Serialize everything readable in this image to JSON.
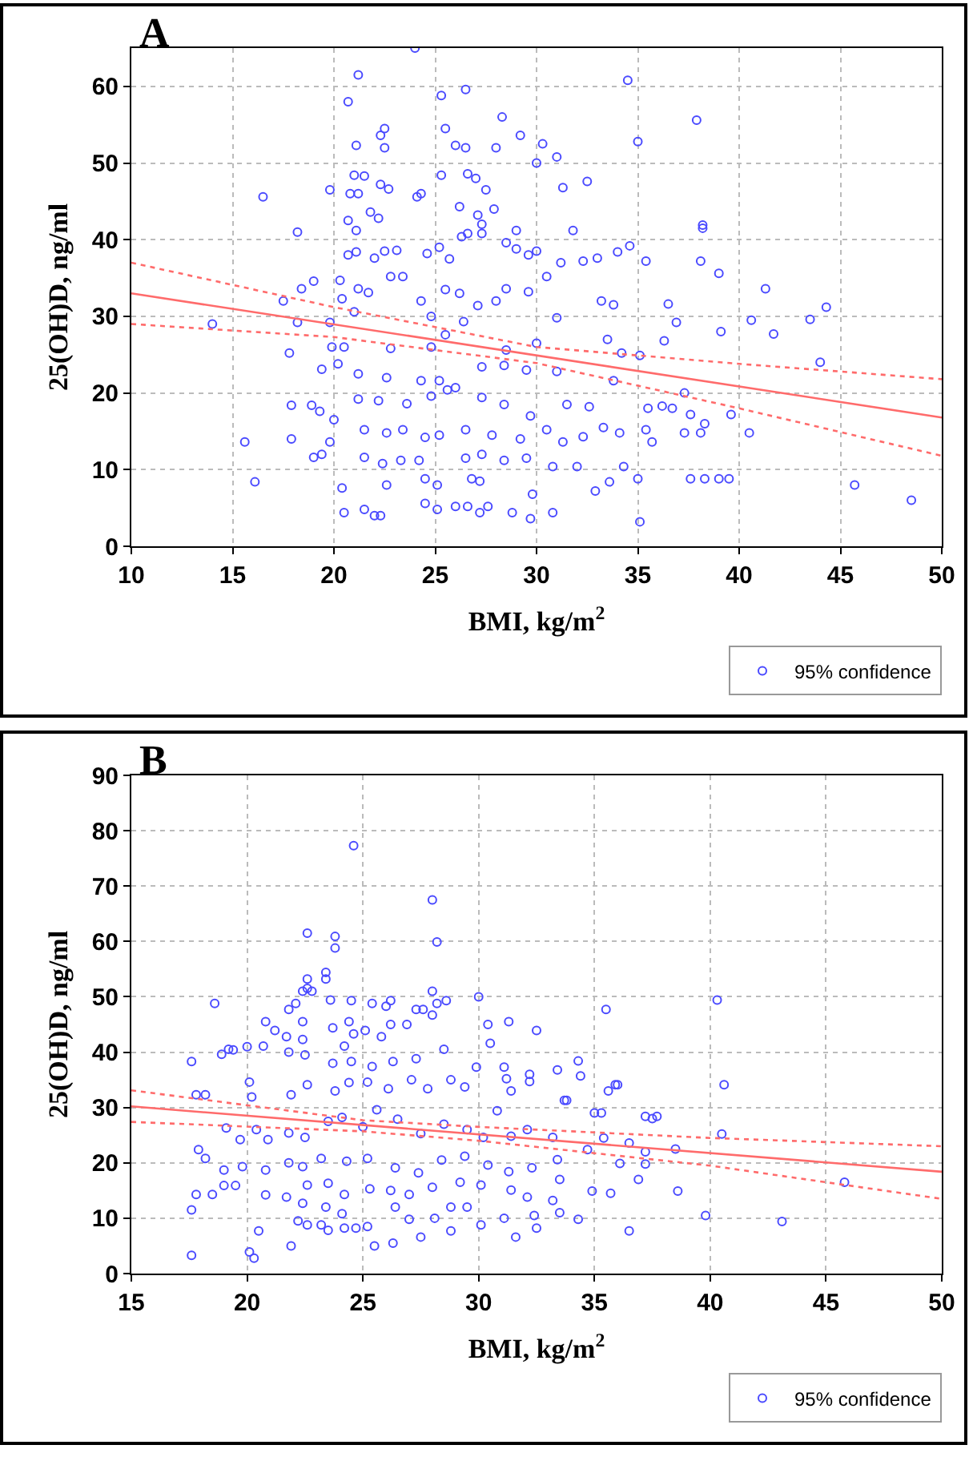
{
  "chart_data": [
    {
      "type": "scatter",
      "title": "A",
      "xlabel": "BMI, kg/m$^{2}$",
      "ylabel": "25(OH)D, ng/ml",
      "xlim": [
        10,
        50
      ],
      "xticks": [
        10,
        15,
        20,
        25,
        30,
        35,
        40,
        45,
        50
      ],
      "ylim": [
        0,
        65
      ],
      "yticks": [
        0,
        10,
        20,
        30,
        40,
        50,
        60
      ],
      "grid": true,
      "legend": "bottom right",
      "series": [
        {
          "name": "95% confidence",
          "marker": "circle",
          "color": "#4a4aff",
          "x": [
            24,
            21.2,
            20.7,
            25.3,
            26.5,
            34.5,
            28.3,
            37.9,
            29.2,
            30.3,
            22.3,
            22.5,
            21.1,
            22.5,
            25.5,
            26,
            26.5,
            28,
            31,
            30,
            35,
            16.5,
            18.2,
            19.8,
            21,
            21.5,
            25.3,
            26.6,
            27,
            22.3,
            22.7,
            27.5,
            31.3,
            32.5,
            20.8,
            21.2,
            24.1,
            24.3,
            20.7,
            21.8,
            22.2,
            26.2,
            27.1,
            27.9,
            27.3,
            38.2,
            38.2,
            31.8,
            29,
            21.1,
            20.7,
            21.1,
            22,
            22.5,
            23.1,
            24.6,
            25.2,
            25.7,
            26.3,
            26.6,
            27.3,
            28.5,
            29,
            29.6,
            30,
            32.3,
            33,
            34,
            34.6,
            35.4,
            38.1,
            39,
            41.3,
            44.3,
            43.5,
            19,
            20.3,
            20.4,
            18.4,
            17.5,
            21.2,
            21.7,
            22.8,
            23.4,
            24.3,
            25.5,
            26.2,
            27.1,
            28,
            28.5,
            29.6,
            30.5,
            31.2,
            33.2,
            33.8,
            36.5,
            14,
            18.2,
            19.8,
            21,
            24.8,
            26.4,
            31,
            36.9,
            39.1,
            40.6,
            41.7,
            20.5,
            19.9,
            17.8,
            22.8,
            24.8,
            25.5,
            28.5,
            30,
            33.5,
            34.2,
            35.1,
            36.3,
            44,
            20.2,
            19.4,
            21.2,
            22.6,
            24.3,
            25.2,
            26,
            27.3,
            28.4,
            29.5,
            31,
            33.8,
            37.3,
            17.9,
            18.9,
            19.3,
            20,
            21.2,
            22.2,
            23.6,
            24.8,
            25.6,
            27.3,
            28.4,
            29.7,
            31.5,
            32.6,
            35.5,
            36.2,
            36.7,
            37.6,
            38.3,
            39.6,
            15.6,
            17.9,
            19.8,
            21.5,
            22.6,
            23.4,
            24.5,
            25.2,
            26.5,
            27.8,
            29.2,
            30.5,
            31.3,
            32.3,
            33.3,
            34.1,
            35.4,
            35.7,
            37.3,
            38.1,
            40.5,
            16.1,
            19,
            19.4,
            21.5,
            22.4,
            23.3,
            24.2,
            25.1,
            26.5,
            27.3,
            28.4,
            29.5,
            30.8,
            32,
            33.6,
            34.3,
            35,
            37.6,
            38.3,
            39,
            39.5,
            20.4,
            22.6,
            24.5,
            26.8,
            27.2,
            29.8,
            32.9,
            20.5,
            21.5,
            22,
            22.3,
            24.5,
            25.1,
            26,
            26.6,
            27.2,
            27.6,
            28.8,
            29.7,
            30.8,
            35.1,
            45.7,
            48.5
          ],
          "values": [
            65,
            61.5,
            58,
            58.8,
            59.6,
            60.8,
            56,
            55.6,
            53.6,
            52.5,
            53.6,
            54.5,
            52.3,
            52,
            54.5,
            52.3,
            52,
            52,
            50.8,
            50,
            52.8,
            45.6,
            41,
            46.5,
            48.4,
            48.3,
            48.4,
            48.6,
            48,
            47.2,
            46.6,
            46.5,
            46.8,
            47.6,
            46,
            46,
            45.6,
            46,
            42.5,
            43.6,
            42.8,
            44.3,
            43.2,
            44,
            42,
            41.9,
            41.5,
            41.2,
            41.2,
            41.2,
            38,
            38.4,
            37.6,
            38.5,
            38.6,
            38.2,
            39,
            37.5,
            40.4,
            40.8,
            40.8,
            39.6,
            38.8,
            38,
            38.5,
            37.2,
            37.6,
            38.4,
            39.2,
            37.2,
            37.2,
            35.6,
            33.6,
            31.2,
            29.6,
            34.6,
            34.7,
            32.3,
            33.6,
            32,
            33.6,
            33.1,
            35.2,
            35.2,
            32,
            33.5,
            33,
            31.4,
            32,
            33.6,
            33.2,
            35.2,
            37,
            32,
            31.5,
            31.6,
            29,
            29.2,
            29.2,
            30.6,
            30,
            29.3,
            29.8,
            29.2,
            28,
            29.5,
            27.7,
            26,
            26,
            25.2,
            25.8,
            26,
            27.6,
            25.6,
            26.5,
            27,
            25.2,
            24.9,
            26.8,
            24,
            23.8,
            23.1,
            22.5,
            22,
            21.6,
            21.6,
            20.7,
            23.4,
            23.6,
            23,
            22.8,
            21.6,
            20,
            18.4,
            18.4,
            17.6,
            16.5,
            19.2,
            19,
            18.6,
            19.6,
            20.4,
            19.4,
            18.5,
            17,
            18.5,
            18.2,
            18,
            18.3,
            18,
            17.2,
            16,
            17.2,
            13.6,
            14,
            13.6,
            15.2,
            14.8,
            15.2,
            14.2,
            14.5,
            15.2,
            14.5,
            14,
            15.2,
            13.6,
            14.3,
            15.5,
            14.8,
            15.2,
            13.6,
            14.8,
            14.8,
            14.8,
            8.4,
            11.6,
            12,
            11.6,
            10.8,
            11.2,
            11.2,
            8,
            11.5,
            12,
            11.2,
            11.5,
            10.4,
            10.4,
            8.4,
            10.4,
            8.8,
            8.8,
            8.8,
            8.8,
            8.8,
            7.6,
            8,
            8.8,
            8.8,
            8.5,
            6.8,
            7.2,
            4.4,
            4.8,
            4,
            4,
            5.6,
            4.8,
            5.2,
            5.2,
            4.4,
            5.2,
            4.4,
            3.6,
            4.4,
            3.2,
            8,
            6
          ]
        },
        {
          "type": "line",
          "marker": "none",
          "line_style": "solid",
          "color": "#ff6b6b",
          "x": [
            10,
            50
          ],
          "values": [
            33,
            16.8
          ]
        },
        {
          "type": "line",
          "marker": "none",
          "line_style": "dotted",
          "color": "#ff6b6b",
          "x": [
            10,
            20,
            30,
            40,
            50
          ],
          "values": [
            37,
            31.2,
            26,
            23.8,
            21.8
          ]
        },
        {
          "type": "line",
          "marker": "none",
          "line_style": "dotted",
          "color": "#ff6b6b",
          "x": [
            10,
            20,
            30,
            40,
            50
          ],
          "values": [
            29,
            27.3,
            23.9,
            18,
            11.8
          ]
        }
      ]
    },
    {
      "type": "scatter",
      "title": "B",
      "xlabel": "BMI, kg/m$^{2}$",
      "ylabel": "25(OH)D, ng/ml",
      "xlim": [
        15,
        50
      ],
      "xticks": [
        15,
        20,
        25,
        30,
        35,
        40,
        45,
        50
      ],
      "ylim": [
        0,
        90
      ],
      "yticks": [
        0,
        10,
        20,
        30,
        40,
        50,
        60,
        70,
        80,
        90
      ],
      "grid": true,
      "legend": "bottom right",
      "series": [
        {
          "name": "95% confidence",
          "marker": "circle",
          "color": "#4a4aff",
          "x": [
            24.6,
            28,
            28.2,
            22.6,
            23.8,
            23.8,
            23.4,
            23.4,
            22.6,
            22.6,
            22.4,
            22.8,
            18.6,
            22.1,
            21.8,
            23.6,
            24.5,
            25.4,
            26.2,
            26,
            27.6,
            28,
            28,
            28.2,
            28.6,
            30,
            30.4,
            31.3,
            32.5,
            35.5,
            40.3,
            22.4,
            20.8,
            21.2,
            21.7,
            24.4,
            24.6,
            25.1,
            25.8,
            26.2,
            26.9,
            27.3,
            30.5,
            20.7,
            22.4,
            23.7,
            24.2,
            18.9,
            19.4,
            20,
            17.6,
            19.2,
            21.8,
            22.5,
            23.7,
            24.5,
            25.4,
            26.3,
            27.3,
            28.5,
            29.9,
            31.1,
            31.2,
            32.2,
            32.2,
            33.4,
            34.3,
            34.4,
            35.6,
            35.9,
            36,
            40.6,
            17.8,
            18.2,
            20.1,
            20.2,
            21.9,
            22.6,
            23.8,
            24.4,
            25.2,
            26.1,
            27.1,
            27.8,
            28.8,
            29.4,
            30.8,
            31.4,
            33.7,
            33.8,
            35,
            35.3,
            37.2,
            37.5,
            37.7,
            19.1,
            19.7,
            20.4,
            20.9,
            21.8,
            22.5,
            23.5,
            24.1,
            25,
            25.6,
            26.5,
            27.5,
            28.5,
            29.5,
            30.2,
            31.4,
            32.1,
            33.2,
            34.7,
            35.4,
            36.5,
            37.2,
            38.5,
            40.5,
            17.9,
            18.2,
            19,
            19.8,
            20.8,
            21.8,
            22.4,
            23.2,
            24.3,
            25.2,
            26.4,
            27.4,
            28.4,
            29.4,
            30.4,
            31.3,
            32.3,
            33.4,
            36.1,
            37.2,
            19,
            19.5,
            17.8,
            18.5,
            20.8,
            21.7,
            22.6,
            23.5,
            24.2,
            25.3,
            26.2,
            27,
            28,
            29.2,
            30.1,
            31.4,
            32.1,
            33.2,
            33.5,
            34.9,
            35.7,
            36.9,
            38.6,
            17.6,
            22.2,
            22.6,
            23.2,
            23.5,
            24.2,
            24.7,
            25.2,
            26.4,
            27,
            28.1,
            28.8,
            29.5,
            30.1,
            31.1,
            31.6,
            32.4,
            32.5,
            33.5,
            34.3,
            36.5,
            39.8,
            43.1,
            45.8,
            17.6,
            20.1,
            20.3,
            21.9,
            25.5,
            26.3,
            27.5,
            28.8,
            20.5,
            22.4,
            23.4,
            24.1
          ],
          "values": [
            77.3,
            67.5,
            59.9,
            61.5,
            60.9,
            58.8,
            54.4,
            53.2,
            53.2,
            51.5,
            51,
            51,
            48.8,
            48.8,
            47.7,
            49.4,
            49.3,
            48.8,
            49.3,
            48.3,
            47.7,
            51,
            46.7,
            48.8,
            49.3,
            50,
            45,
            45.5,
            43.9,
            47.7,
            49.4,
            45.5,
            45.5,
            43.9,
            42.8,
            45.5,
            43.3,
            43.9,
            42.8,
            45,
            45,
            47.7,
            41.6,
            41.1,
            42.3,
            44.4,
            41.1,
            39.6,
            40.4,
            41,
            38.3,
            40.5,
            40,
            39.5,
            38,
            38.3,
            37.4,
            38.3,
            38.8,
            40.5,
            37.3,
            37.3,
            35.2,
            36,
            34.7,
            36.8,
            38.4,
            35.7,
            33,
            34.1,
            34.1,
            34.1,
            32.3,
            32.3,
            34.6,
            31.9,
            32.3,
            34.1,
            33,
            34.5,
            34.6,
            33.4,
            35,
            33.4,
            35,
            33.7,
            29.4,
            33,
            31.3,
            31.3,
            29,
            29,
            28.4,
            28,
            28.4,
            26.3,
            24.2,
            26,
            24.2,
            25.4,
            24.6,
            27.5,
            28.2,
            26.5,
            29.6,
            27.9,
            25.3,
            27,
            26,
            24.6,
            24.8,
            26,
            24.6,
            22.4,
            24.5,
            23.6,
            22,
            22.5,
            25.2,
            22.4,
            20.8,
            18.7,
            19.3,
            18.7,
            20,
            19.3,
            20.8,
            20.3,
            20.8,
            19.1,
            18.2,
            20.5,
            21.2,
            19.6,
            18.4,
            19.1,
            20.6,
            19.9,
            19.8,
            15.9,
            15.9,
            14.3,
            14.3,
            14.2,
            13.8,
            16,
            16.3,
            14.3,
            15.3,
            15,
            14.3,
            15.6,
            16.5,
            16,
            15.1,
            13.8,
            13.2,
            17,
            14.9,
            14.5,
            17,
            14.9,
            11.5,
            9.5,
            8.8,
            8.8,
            7.8,
            8.2,
            8.2,
            8.5,
            12,
            9.8,
            10,
            12,
            12,
            8.8,
            10,
            6.6,
            10.5,
            8.2,
            11,
            9.8,
            7.7,
            10.5,
            9.4,
            16.5,
            3.3,
            3.9,
            2.8,
            5,
            5,
            5.5,
            6.6,
            7.7,
            7.7,
            12.7,
            12,
            10.8
          ]
        },
        {
          "type": "line",
          "marker": "none",
          "line_style": "solid",
          "color": "#ff6b6b",
          "x": [
            15,
            50
          ],
          "values": [
            30.2,
            18.4
          ]
        },
        {
          "type": "line",
          "marker": "none",
          "line_style": "dotted",
          "color": "#ff6b6b",
          "x": [
            15,
            25,
            30,
            40,
            50
          ],
          "values": [
            33.1,
            27.7,
            26.5,
            24.5,
            23
          ]
        },
        {
          "type": "line",
          "marker": "none",
          "line_style": "dotted",
          "color": "#ff6b6b",
          "x": [
            15,
            25,
            30,
            40,
            50
          ],
          "values": [
            27.4,
            25.7,
            24,
            19.5,
            13.5
          ]
        }
      ]
    }
  ]
}
